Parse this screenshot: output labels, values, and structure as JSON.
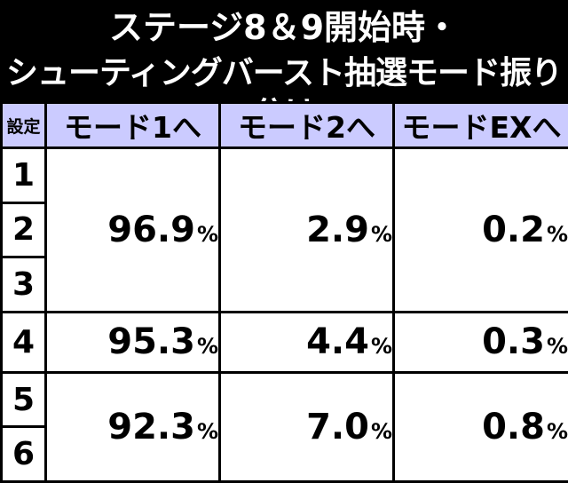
{
  "title": {
    "line1": "ステージ8＆9開始時・",
    "line2": "シューティングバースト抽選モード振り分け"
  },
  "table": {
    "headers": [
      "設定",
      "モード1へ",
      "モード2へ",
      "モードEXへ"
    ],
    "settings": [
      "1",
      "2",
      "3",
      "4",
      "5",
      "6"
    ],
    "groups": [
      {
        "values": [
          "96.9",
          "2.9",
          "0.2"
        ]
      },
      {
        "values": [
          "95.3",
          "4.4",
          "0.3"
        ]
      },
      {
        "values": [
          "92.3",
          "7.0",
          "0.8"
        ]
      }
    ],
    "unit": "%"
  }
}
